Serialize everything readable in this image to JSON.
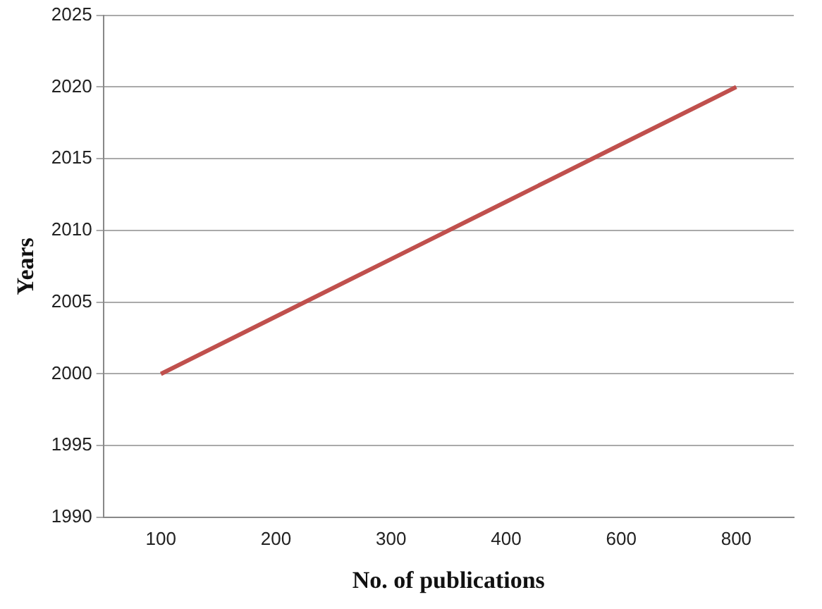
{
  "chart_data": {
    "type": "line",
    "xlabel": "No. of publications",
    "ylabel": "Years",
    "categories": [
      "100",
      "200",
      "300",
      "400",
      "600",
      "800"
    ],
    "series": [
      {
        "color": "#c0504d",
        "values": [
          2000,
          2004,
          2008,
          2012,
          2016,
          2020
        ]
      }
    ],
    "ylim": [
      1990,
      2025
    ],
    "yticks": [
      1990,
      1995,
      2000,
      2005,
      2010,
      2015,
      2020,
      2025
    ],
    "grid": "y",
    "legend": false,
    "marker": "none",
    "line_style": "solid"
  }
}
